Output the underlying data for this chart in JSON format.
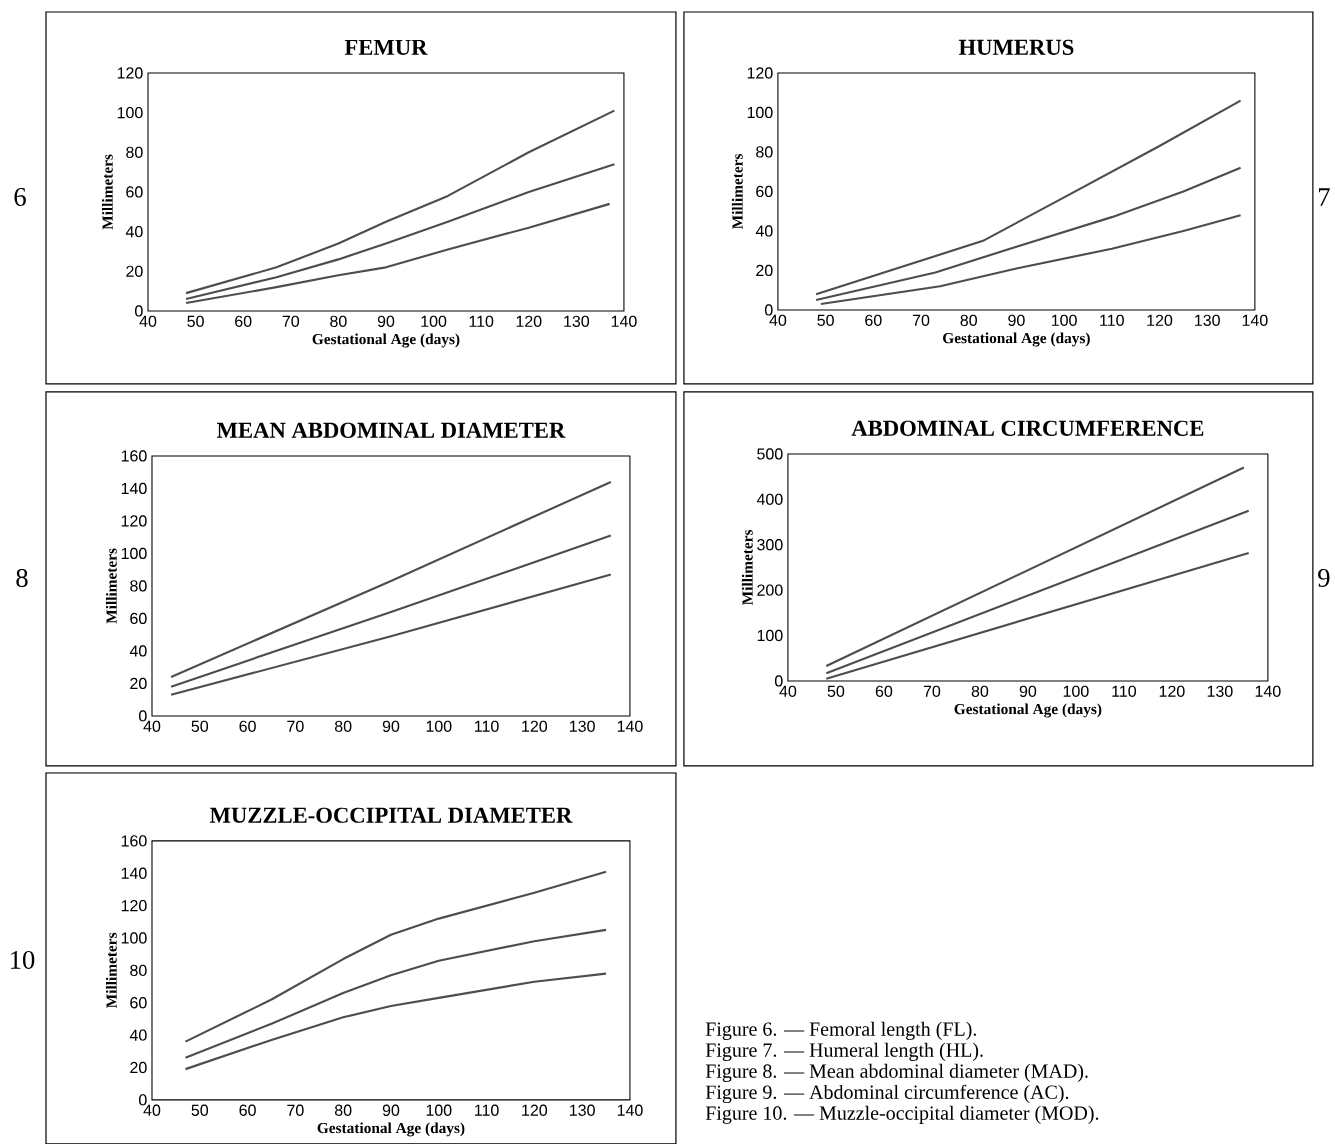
{
  "chart_data": [
    {
      "type": "line",
      "title": "FEMUR",
      "xlabel": "Gestational Age (days)",
      "ylabel": "Millimeters",
      "xlim": [
        40,
        140
      ],
      "xticks": [
        40,
        50,
        60,
        70,
        80,
        90,
        100,
        110,
        120,
        130,
        140
      ],
      "ylim": [
        0,
        120
      ],
      "yticks": [
        0,
        20,
        40,
        60,
        80,
        100,
        120
      ],
      "annotations": [
        "6"
      ],
      "series": [
        {
          "color": "#4d4d4d",
          "x": [
            48,
            67,
            80,
            90,
            103,
            120,
            138
          ],
          "values": [
            9,
            22,
            34,
            45,
            58,
            80,
            101
          ]
        },
        {
          "color": "#4d4d4d",
          "x": [
            48,
            67,
            80,
            90,
            103,
            120,
            138
          ],
          "values": [
            6,
            17,
            26,
            34,
            45,
            60,
            74
          ]
        },
        {
          "color": "#4d4d4d",
          "x": [
            48,
            67,
            80,
            90,
            103,
            120,
            137
          ],
          "values": [
            4,
            12,
            18,
            22,
            31,
            42,
            54
          ]
        }
      ]
    },
    {
      "type": "line",
      "title": "HUMERUS",
      "xlabel": "Gestational Age (days)",
      "ylabel": "Millimeters",
      "xlim": [
        40,
        140
      ],
      "xticks": [
        40,
        50,
        60,
        70,
        80,
        90,
        100,
        110,
        120,
        130,
        140
      ],
      "ylim": [
        0,
        120
      ],
      "yticks": [
        0,
        20,
        40,
        60,
        80,
        100,
        120
      ],
      "annotations": [
        "7"
      ],
      "series": [
        {
          "color": "#4d4d4d",
          "x": [
            48,
            83,
            100,
            120,
            137
          ],
          "values": [
            8,
            35,
            57,
            83,
            106
          ]
        },
        {
          "color": "#4d4d4d",
          "x": [
            48,
            73,
            90,
            110,
            125,
            137
          ],
          "values": [
            5,
            19,
            32,
            47,
            60,
            72
          ]
        },
        {
          "color": "#4d4d4d",
          "x": [
            49,
            74,
            90,
            110,
            125,
            137
          ],
          "values": [
            3,
            12,
            21,
            31,
            40,
            48
          ]
        }
      ]
    },
    {
      "type": "line",
      "title": "MEAN ABDOMINAL DIAMETER",
      "xlabel": null,
      "ylabel": "Millimeters",
      "xlim": [
        40,
        140
      ],
      "xticks": [
        40,
        50,
        60,
        70,
        80,
        90,
        100,
        110,
        120,
        130,
        140
      ],
      "ylim": [
        0,
        160
      ],
      "yticks": [
        0,
        20,
        40,
        60,
        80,
        100,
        120,
        140,
        160
      ],
      "annotations": [
        "8"
      ],
      "series": [
        {
          "color": "#4d4d4d",
          "x": [
            44,
            90,
            136
          ],
          "values": [
            24,
            83,
            144
          ]
        },
        {
          "color": "#4d4d4d",
          "x": [
            44,
            90,
            136
          ],
          "values": [
            18,
            64,
            111
          ]
        },
        {
          "color": "#4d4d4d",
          "x": [
            44,
            90,
            136
          ],
          "values": [
            13,
            49,
            87
          ]
        }
      ]
    },
    {
      "type": "line",
      "title": "ABDOMINAL CIRCUMFERENCE",
      "xlabel": "Gestational Age (days)",
      "ylabel": "Millimeters",
      "xlim": [
        40,
        140
      ],
      "xticks": [
        40,
        50,
        60,
        70,
        80,
        90,
        100,
        110,
        120,
        130,
        140
      ],
      "ylim": [
        0,
        500
      ],
      "yticks": [
        0,
        100,
        200,
        300,
        400,
        500
      ],
      "annotations": [
        "9"
      ],
      "series": [
        {
          "color": "#4d4d4d",
          "x": [
            48,
            135
          ],
          "values": [
            33,
            470
          ]
        },
        {
          "color": "#4d4d4d",
          "x": [
            48,
            136
          ],
          "values": [
            17,
            375
          ]
        },
        {
          "color": "#4d4d4d",
          "x": [
            48,
            136
          ],
          "values": [
            5,
            282
          ]
        }
      ]
    },
    {
      "type": "line",
      "title": "MUZZLE-OCCIPITAL DIAMETER",
      "xlabel": "Gestational Age (days)",
      "ylabel": "Millimeters",
      "xlim": [
        40,
        140
      ],
      "xticks": [
        40,
        50,
        60,
        70,
        80,
        90,
        100,
        110,
        120,
        130,
        140
      ],
      "ylim": [
        0,
        160
      ],
      "yticks": [
        0,
        20,
        40,
        60,
        80,
        100,
        120,
        140,
        160
      ],
      "annotations": [
        "10",
        "Figure 6. — Femoral length (FL).",
        "Figure 7. — Humeral length (HL).",
        "Figure 8. — Mean abdominal diameter (MAD).",
        "Figure 9. — Abdominal circumference (AC).",
        "Figure 10. — Muzzle-occipital diameter (MOD)."
      ],
      "series": [
        {
          "color": "#4d4d4d",
          "x": [
            47,
            65,
            80,
            90,
            100,
            120,
            135
          ],
          "values": [
            36,
            62,
            87,
            102,
            112,
            128,
            141
          ]
        },
        {
          "color": "#4d4d4d",
          "x": [
            47,
            65,
            80,
            90,
            100,
            120,
            135
          ],
          "values": [
            26,
            47,
            66,
            77,
            86,
            98,
            105
          ]
        },
        {
          "color": "#4d4d4d",
          "x": [
            47,
            65,
            80,
            90,
            100,
            120,
            135
          ],
          "values": [
            19,
            37,
            51,
            58,
            63,
            73,
            78
          ]
        }
      ]
    }
  ]
}
